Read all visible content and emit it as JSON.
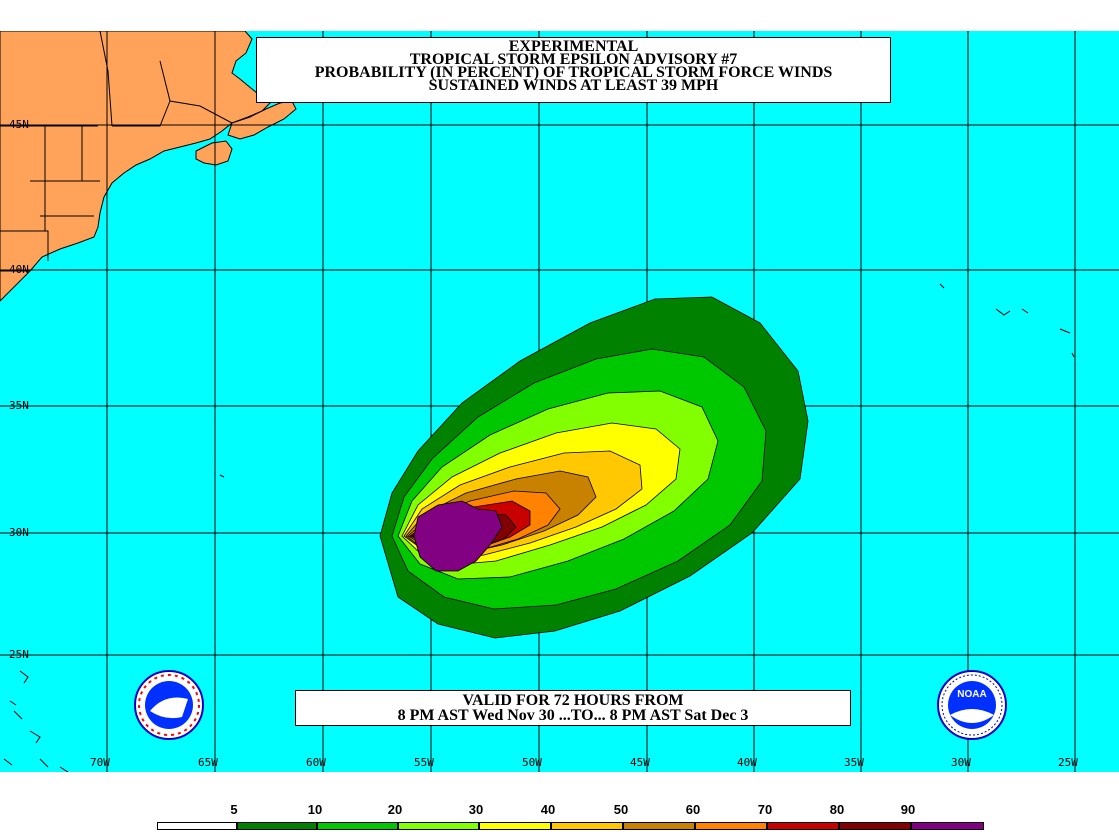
{
  "title": {
    "line1": "EXPERIMENTAL",
    "line2": "TROPICAL STORM EPSILON ADVISORY #7",
    "line3": "PROBABILITY (IN PERCENT) OF TROPICAL STORM FORCE WINDS",
    "line4": "SUSTAINED WINDS AT LEAST 39 MPH"
  },
  "valid": {
    "line1": "VALID FOR 72 HOURS FROM",
    "line2": "8 PM AST Wed Nov 30 ...TO... 8 PM AST Sat Dec 3"
  },
  "lat_labels": [
    "45N",
    "40N",
    "35N",
    "30N",
    "25N"
  ],
  "lon_labels": [
    "70W",
    "65W",
    "60W",
    "55W",
    "50W",
    "45W",
    "40W",
    "35W",
    "30W",
    "25W"
  ],
  "scale": {
    "labels": [
      "5",
      "10",
      "20",
      "30",
      "40",
      "50",
      "60",
      "70",
      "80",
      "90"
    ],
    "colors": [
      "#ffffff",
      "#008200",
      "#00c800",
      "#82ff00",
      "#ffff00",
      "#ffc800",
      "#c88200",
      "#ff8200",
      "#c80000",
      "#820000",
      "#820082"
    ]
  },
  "colors": {
    "ocean": "#00ffff",
    "land": "#ffa35a"
  },
  "logos": {
    "nws": "nws-logo",
    "noaa": "NOAA"
  }
}
